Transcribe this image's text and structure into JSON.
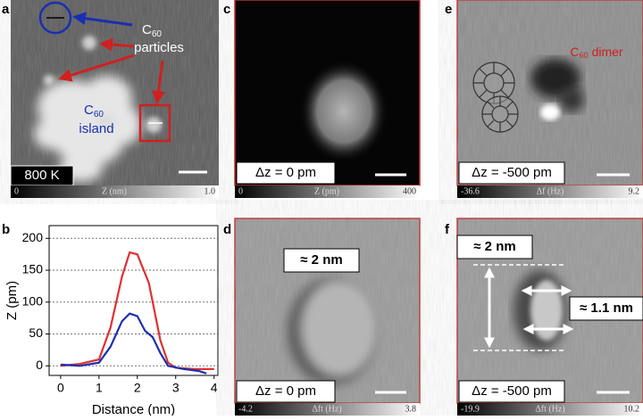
{
  "panels": {
    "a": {
      "letter": "a",
      "particles_label": {
        "base": "C",
        "sub": "60",
        "text": "particles"
      },
      "island_label": {
        "base": "C",
        "sub": "60",
        "text": "island"
      },
      "temperature": "800 K",
      "colorbar": {
        "min": "0",
        "label": "Z (nm)",
        "max": "1.0"
      }
    },
    "b": {
      "letter": "b"
    },
    "c": {
      "letter": "c",
      "label": "Δz = 0 pm",
      "colorbar": {
        "min": "0",
        "label": "Z (pm)",
        "max": "400"
      }
    },
    "d": {
      "letter": "d",
      "size_label": "≈ 2 nm",
      "label": "Δz = 0 pm",
      "colorbar": {
        "min": "-4.2",
        "label": "Δft (Hz)",
        "max": "3.8"
      }
    },
    "e": {
      "letter": "e",
      "dimer_label": {
        "base": "C",
        "sub": "60",
        "text": "dimer"
      },
      "label": "Δz = -500 pm",
      "colorbar": {
        "min": "-36.6",
        "label": "Δf (Hz)",
        "max": "9.2"
      }
    },
    "f": {
      "letter": "f",
      "size_label": "≈ 2 nm",
      "width_label": "≈ 1.1 nm",
      "label": "Δz = -500 pm",
      "colorbar": {
        "min": "-19.9",
        "label": "Δft (Hz)",
        "max": "10.2"
      }
    }
  },
  "chart_data": {
    "type": "line",
    "x_label": "Distance (nm)",
    "y_label": "Z (pm)",
    "xlim": [
      -0.3,
      4.1
    ],
    "ylim": [
      -15,
      220
    ],
    "xticks": [
      0,
      1,
      2,
      3,
      4
    ],
    "yticks": [
      0,
      50,
      100,
      150,
      200
    ],
    "grid": true,
    "series": [
      {
        "color": "#e03030",
        "x": [
          0,
          0.5,
          1,
          1.3,
          1.6,
          1.8,
          2,
          2.3,
          2.6,
          2.8,
          3,
          3.5,
          4
        ],
        "values": [
          0,
          3,
          10,
          60,
          140,
          178,
          175,
          130,
          40,
          5,
          -3,
          -5,
          -5
        ]
      },
      {
        "color": "#1a2fb0",
        "x": [
          0,
          0.5,
          1,
          1.3,
          1.6,
          1.8,
          2,
          2.2,
          2.4,
          2.6,
          2.8,
          3.2,
          3.6,
          3.8
        ],
        "values": [
          2,
          0,
          5,
          30,
          70,
          82,
          78,
          55,
          45,
          20,
          0,
          -5,
          -8,
          -12
        ]
      }
    ]
  }
}
